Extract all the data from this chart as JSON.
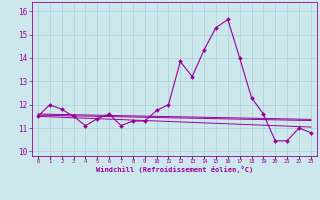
{
  "x": [
    0,
    1,
    2,
    3,
    4,
    5,
    6,
    7,
    8,
    9,
    10,
    11,
    12,
    13,
    14,
    15,
    16,
    17,
    18,
    19,
    20,
    21,
    22,
    23
  ],
  "y_main": [
    11.5,
    12.0,
    11.8,
    11.5,
    11.1,
    11.4,
    11.6,
    11.1,
    11.3,
    11.3,
    11.75,
    12.0,
    13.85,
    13.2,
    14.35,
    15.3,
    15.65,
    14.0,
    12.3,
    11.6,
    10.45,
    10.45,
    11.0,
    10.8
  ],
  "y_line1": [
    11.5,
    11.48,
    11.46,
    11.44,
    11.42,
    11.4,
    11.38,
    11.36,
    11.34,
    11.32,
    11.3,
    11.28,
    11.26,
    11.24,
    11.22,
    11.2,
    11.18,
    11.16,
    11.14,
    11.12,
    11.1,
    11.08,
    11.06,
    11.04
  ],
  "y_line2": [
    11.55,
    11.54,
    11.53,
    11.52,
    11.51,
    11.5,
    11.49,
    11.48,
    11.47,
    11.46,
    11.45,
    11.44,
    11.43,
    11.42,
    11.41,
    11.4,
    11.39,
    11.38,
    11.37,
    11.36,
    11.35,
    11.34,
    11.33,
    11.32
  ],
  "y_line3": [
    11.6,
    11.59,
    11.58,
    11.57,
    11.56,
    11.55,
    11.54,
    11.53,
    11.52,
    11.51,
    11.5,
    11.49,
    11.48,
    11.47,
    11.46,
    11.45,
    11.44,
    11.43,
    11.42,
    11.41,
    11.4,
    11.39,
    11.38,
    11.37
  ],
  "line_color": "#990099",
  "bg_color": "#cce8ec",
  "grid_color": "#aaccd4",
  "xlabel": "Windchill (Refroidissement éolien,°C)",
  "yticks": [
    10,
    11,
    12,
    13,
    14,
    15,
    16
  ],
  "ylim": [
    9.8,
    16.4
  ],
  "xlim": [
    -0.5,
    23.5
  ]
}
